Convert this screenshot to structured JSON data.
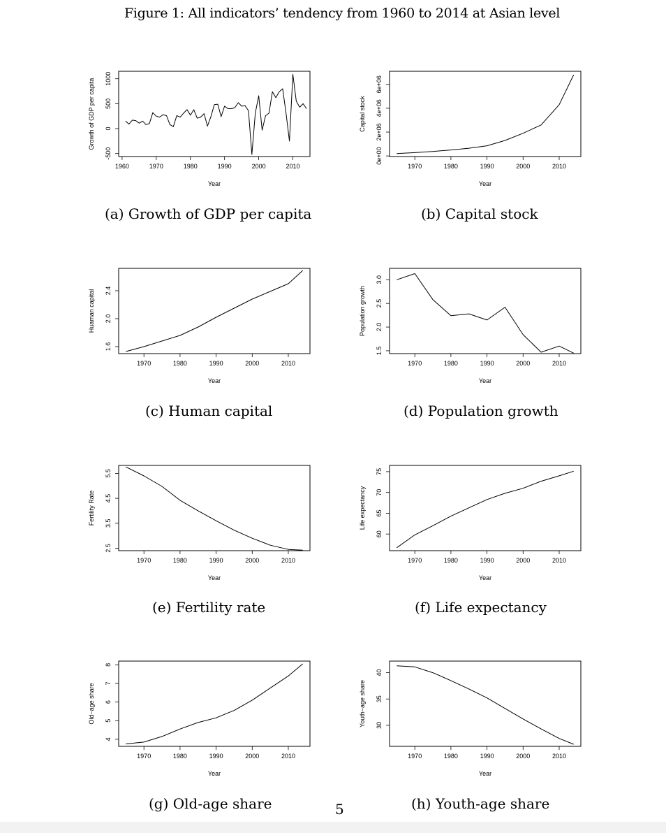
{
  "figure_title": "Figure 1: All indicators’ tendency from 1960 to 2014 at Asian level",
  "page_number": "5",
  "chart_data": [
    {
      "id": "a",
      "type": "line",
      "caption": "(a) Growth of GDP per capita",
      "xlabel": "Year",
      "ylabel": "Growth of GDP per capita",
      "xlim": [
        1959,
        2015
      ],
      "ylim": [
        -560,
        1150
      ],
      "xticks": [
        1960,
        1970,
        1980,
        1990,
        2000,
        2010
      ],
      "yticks": [
        -500,
        0,
        500,
        1000
      ],
      "ytick_labels": [
        "-500",
        "0",
        "500",
        "1000"
      ],
      "x": [
        1961,
        1962,
        1963,
        1964,
        1965,
        1966,
        1967,
        1968,
        1969,
        1970,
        1971,
        1972,
        1973,
        1974,
        1975,
        1976,
        1977,
        1978,
        1979,
        1980,
        1981,
        1982,
        1983,
        1984,
        1985,
        1986,
        1987,
        1988,
        1989,
        1990,
        1991,
        1992,
        1993,
        1994,
        1995,
        1996,
        1997,
        1998,
        1999,
        2000,
        2001,
        2002,
        2003,
        2004,
        2005,
        2006,
        2007,
        2008,
        2009,
        2010,
        2011,
        2012,
        2013,
        2014
      ],
      "y": [
        150,
        90,
        170,
        160,
        110,
        150,
        80,
        100,
        320,
        250,
        230,
        280,
        260,
        80,
        40,
        260,
        230,
        310,
        380,
        270,
        380,
        210,
        230,
        300,
        50,
        240,
        480,
        490,
        240,
        450,
        400,
        400,
        420,
        520,
        450,
        460,
        360,
        -520,
        310,
        660,
        -30,
        260,
        310,
        740,
        620,
        740,
        800,
        300,
        -250,
        1090,
        550,
        430,
        500,
        400
      ]
    },
    {
      "id": "b",
      "type": "line",
      "caption": "(b) Capital stock",
      "xlabel": "Year",
      "ylabel": "Capital stock",
      "xlim": [
        1963,
        2016
      ],
      "ylim": [
        -50000,
        7100000
      ],
      "xticks": [
        1970,
        1980,
        1990,
        2000,
        2010
      ],
      "yticks": [
        0,
        2000000,
        4000000,
        6000000
      ],
      "ytick_labels": [
        "0e+00",
        "2e+06",
        "4e+06",
        "6e+06"
      ],
      "x": [
        1965,
        1970,
        1975,
        1980,
        1985,
        1990,
        1995,
        2000,
        2005,
        2010,
        2014
      ],
      "y": [
        200000,
        280000,
        380000,
        500000,
        650000,
        850000,
        1300000,
        1900000,
        2600000,
        4300000,
        6800000
      ]
    },
    {
      "id": "c",
      "type": "line",
      "caption": "(c) Human capital",
      "xlabel": "Year",
      "ylabel": "Huaman capital",
      "xlim": [
        1963,
        2016
      ],
      "ylim": [
        1.5,
        2.72
      ],
      "xticks": [
        1970,
        1980,
        1990,
        2000,
        2010
      ],
      "yticks": [
        1.6,
        2.0,
        2.4
      ],
      "ytick_labels": [
        "1.6",
        "2.0",
        "2.4"
      ],
      "x": [
        1965,
        1970,
        1975,
        1980,
        1985,
        1990,
        1995,
        2000,
        2005,
        2010,
        2014
      ],
      "y": [
        1.53,
        1.6,
        1.68,
        1.76,
        1.88,
        2.02,
        2.15,
        2.28,
        2.39,
        2.5,
        2.69
      ]
    },
    {
      "id": "d",
      "type": "line",
      "caption": "(d) Population growth",
      "xlabel": "Year",
      "ylabel": "Population growth",
      "xlim": [
        1963,
        2016
      ],
      "ylim": [
        1.44,
        3.24
      ],
      "xticks": [
        1970,
        1980,
        1990,
        2000,
        2010
      ],
      "yticks": [
        1.5,
        2.0,
        2.5,
        3.0
      ],
      "ytick_labels": [
        "1.5",
        "2.0",
        "2.5",
        "3.0"
      ],
      "x": [
        1965,
        1970,
        1975,
        1980,
        1985,
        1990,
        1995,
        2000,
        2005,
        2010,
        2014
      ],
      "y": [
        3.0,
        3.13,
        2.58,
        2.24,
        2.28,
        2.15,
        2.42,
        1.84,
        1.47,
        1.6,
        1.45
      ]
    },
    {
      "id": "e",
      "type": "line",
      "caption": "(e) Fertility rate",
      "xlabel": "Year",
      "ylabel": "Fertility Rate",
      "xlim": [
        1963,
        2016
      ],
      "ylim": [
        2.4,
        5.82
      ],
      "xticks": [
        1970,
        1980,
        1990,
        2000,
        2010
      ],
      "yticks": [
        2.5,
        3.5,
        4.5,
        5.5
      ],
      "ytick_labels": [
        "2.5",
        "3.5",
        "4.5",
        "5.5"
      ],
      "x": [
        1965,
        1970,
        1975,
        1980,
        1985,
        1990,
        1995,
        2000,
        2005,
        2010,
        2014
      ],
      "y": [
        5.76,
        5.4,
        4.98,
        4.42,
        4.0,
        3.6,
        3.22,
        2.9,
        2.62,
        2.45,
        2.42
      ]
    },
    {
      "id": "f",
      "type": "line",
      "caption": "(f) Life expectancy",
      "xlabel": "Year",
      "ylabel": "Life expectancy",
      "xlim": [
        1963,
        2016
      ],
      "ylim": [
        56,
        76.5
      ],
      "xticks": [
        1970,
        1980,
        1990,
        2000,
        2010
      ],
      "yticks": [
        60,
        65,
        70,
        75
      ],
      "ytick_labels": [
        "60",
        "65",
        "70",
        "75"
      ],
      "x": [
        1965,
        1970,
        1975,
        1980,
        1985,
        1990,
        1995,
        2000,
        2005,
        2010,
        2014
      ],
      "y": [
        56.7,
        59.8,
        62.0,
        64.3,
        66.3,
        68.3,
        69.8,
        71.0,
        72.7,
        74.0,
        75.1
      ]
    },
    {
      "id": "g",
      "type": "line",
      "caption": "(g) Old-age share",
      "xlabel": "Year",
      "ylabel": "Old−age share",
      "xlim": [
        1963,
        2016
      ],
      "ylim": [
        3.62,
        8.2
      ],
      "xticks": [
        1970,
        1980,
        1990,
        2000,
        2010
      ],
      "yticks": [
        4,
        5,
        6,
        7,
        8
      ],
      "ytick_labels": [
        "4",
        "5",
        "6",
        "7",
        "8"
      ],
      "x": [
        1965,
        1970,
        1975,
        1980,
        1985,
        1990,
        1995,
        2000,
        2005,
        2010,
        2014
      ],
      "y": [
        3.75,
        3.85,
        4.15,
        4.55,
        4.9,
        5.15,
        5.55,
        6.1,
        6.75,
        7.4,
        8.05
      ]
    },
    {
      "id": "h",
      "type": "line",
      "caption": "(h) Youth-age share",
      "xlabel": "Year",
      "ylabel": "Youth−age share",
      "xlim": [
        1963,
        2016
      ],
      "ylim": [
        26,
        42.2
      ],
      "xticks": [
        1970,
        1980,
        1990,
        2000,
        2010
      ],
      "yticks": [
        30,
        35,
        40
      ],
      "ytick_labels": [
        "30",
        "35",
        "40"
      ],
      "x": [
        1965,
        1970,
        1975,
        1980,
        1985,
        1990,
        1995,
        2000,
        2005,
        2010,
        2014
      ],
      "y": [
        41.3,
        41.1,
        40.0,
        38.5,
        36.9,
        35.2,
        33.2,
        31.2,
        29.3,
        27.5,
        26.4
      ]
    }
  ]
}
